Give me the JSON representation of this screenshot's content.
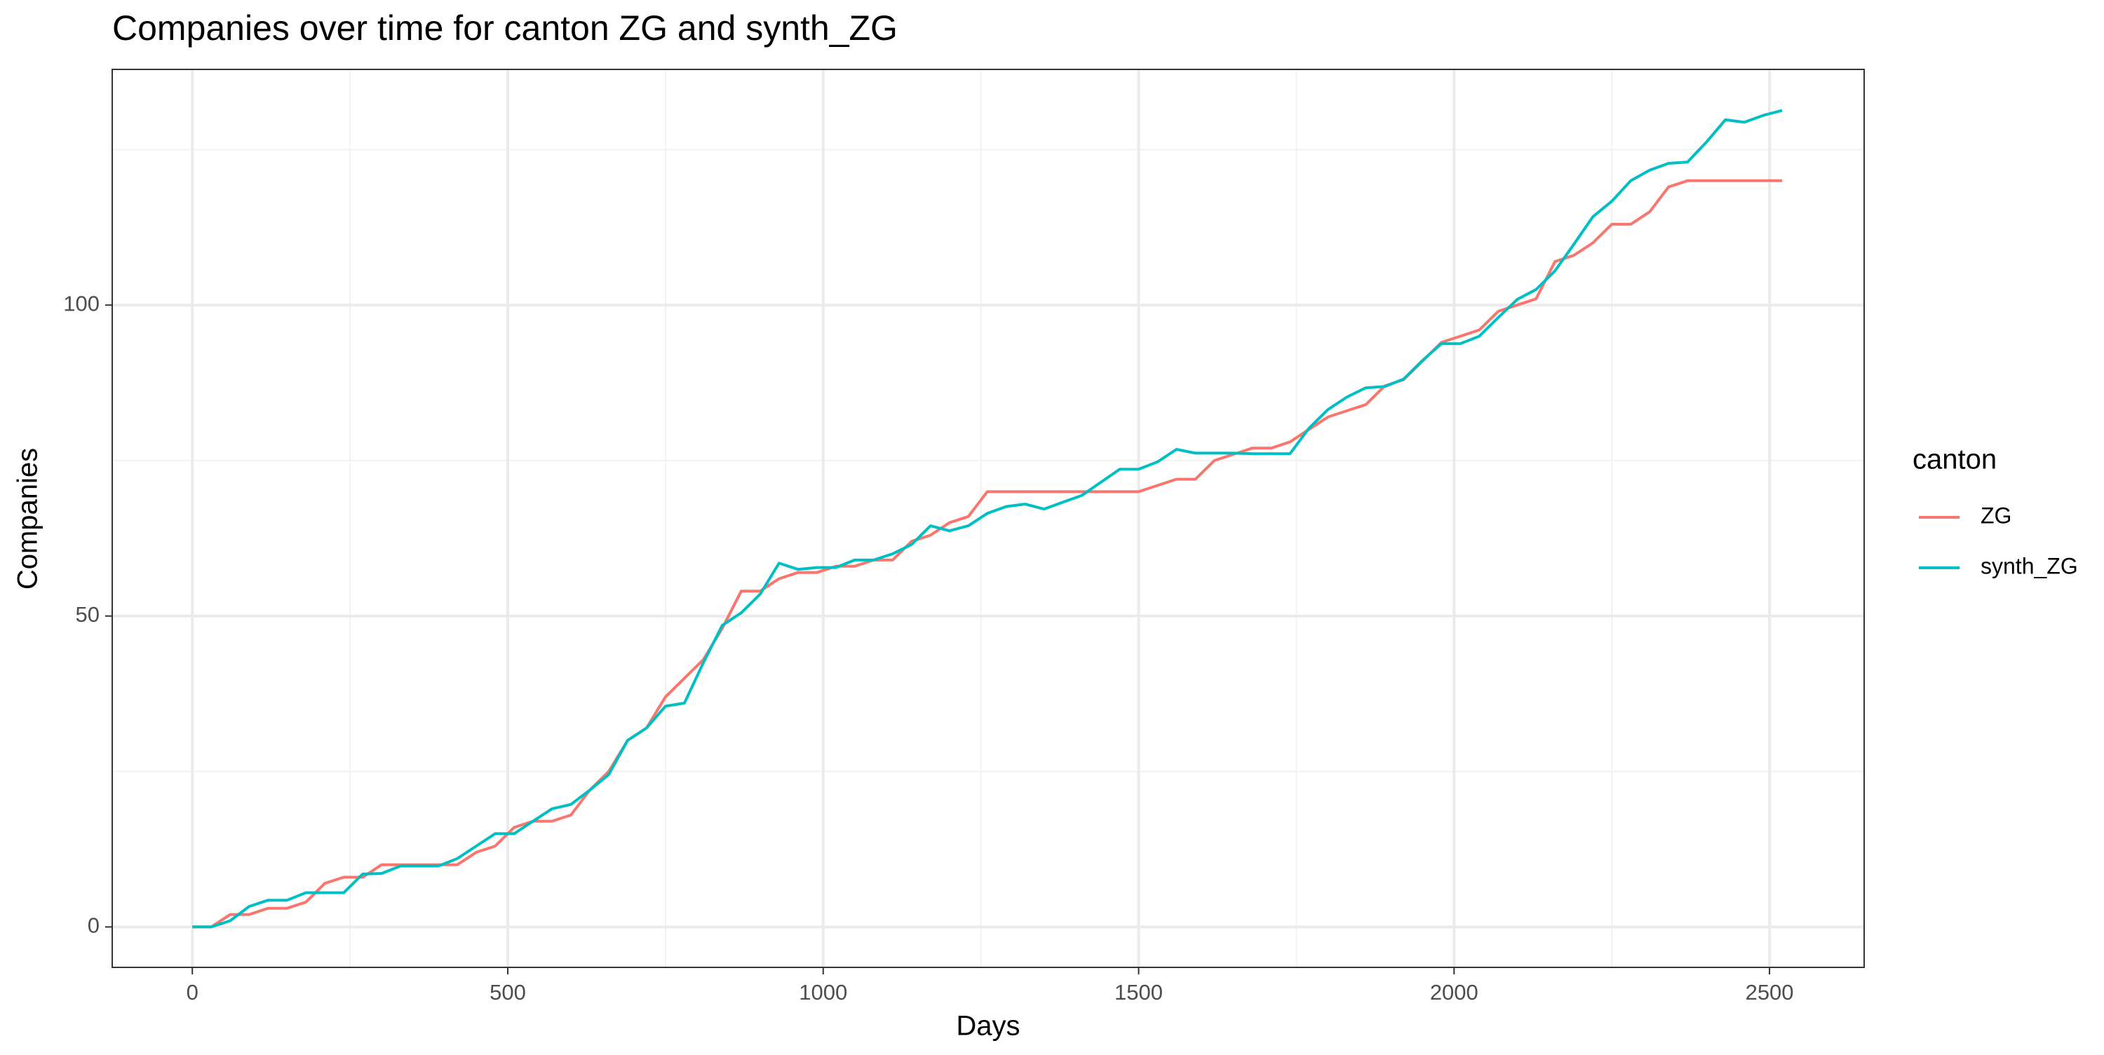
{
  "chart_data": {
    "type": "line",
    "title": "Companies over time for canton ZG and synth_ZG",
    "x_label": "Days",
    "y_label": "Companies",
    "legend_title": "canton",
    "legend_position": "right",
    "grid": true,
    "xlim": [
      -127,
      2650
    ],
    "ylim": [
      -6.5,
      137.9
    ],
    "xticks": [
      0,
      500,
      1000,
      1500,
      2000,
      2500
    ],
    "yticks": [
      0,
      50,
      100
    ],
    "x": [
      0,
      30,
      60,
      90,
      120,
      150,
      180,
      210,
      240,
      270,
      300,
      330,
      360,
      390,
      420,
      450,
      480,
      510,
      540,
      570,
      600,
      630,
      660,
      690,
      720,
      750,
      780,
      810,
      840,
      870,
      900,
      930,
      960,
      990,
      1020,
      1050,
      1080,
      1110,
      1140,
      1170,
      1200,
      1230,
      1260,
      1290,
      1320,
      1350,
      1380,
      1410,
      1440,
      1470,
      1500,
      1530,
      1560,
      1590,
      1620,
      1650,
      1680,
      1710,
      1740,
      1770,
      1800,
      1830,
      1860,
      1890,
      1920,
      1950,
      1980,
      2010,
      2040,
      2070,
      2100,
      2130,
      2160,
      2190,
      2220,
      2250,
      2280,
      2310,
      2340,
      2370,
      2400,
      2430,
      2460,
      2490,
      2520
    ],
    "series": [
      {
        "name": "ZG",
        "color": "#F8766D",
        "values": [
          0,
          0,
          2,
          2,
          3,
          3,
          4,
          7,
          8,
          8,
          10,
          10,
          10,
          10,
          10,
          12,
          13,
          16,
          17,
          17,
          18,
          22,
          25,
          30,
          32,
          37,
          40,
          43,
          48,
          54,
          54,
          56,
          57,
          57,
          58,
          58,
          59,
          59,
          62,
          63,
          65,
          66,
          70,
          70,
          70,
          70,
          70,
          70,
          70,
          70,
          70,
          71,
          72,
          72,
          75,
          76,
          77,
          77,
          78,
          80,
          82,
          83,
          84,
          87,
          88,
          91,
          94,
          95,
          96,
          99,
          100,
          101,
          107,
          108,
          110,
          113,
          113,
          115,
          119,
          120,
          120,
          120,
          120,
          120,
          120
        ]
      },
      {
        "name": "synth_ZG",
        "color": "#00BFC4",
        "values": [
          0,
          0,
          1,
          3.3,
          4.3,
          4.3,
          5.5,
          5.5,
          5.5,
          8.5,
          8.6,
          9.8,
          9.8,
          9.8,
          11,
          13,
          15,
          15,
          17,
          19,
          19.7,
          22,
          24.5,
          30,
          32,
          35.5,
          36,
          42.5,
          48.5,
          50.5,
          53.5,
          58.5,
          57.5,
          57.8,
          57.8,
          59,
          59,
          60,
          61.5,
          64.5,
          63.7,
          64.5,
          66.5,
          67.6,
          68,
          67.2,
          68.3,
          69.4,
          71.5,
          73.6,
          73.6,
          74.8,
          76.8,
          76.2,
          76.2,
          76.2,
          76.1,
          76.1,
          76.1,
          80.2,
          83.2,
          85.2,
          86.7,
          86.9,
          88.1,
          91.1,
          93.8,
          93.8,
          95,
          98,
          100.9,
          102.5,
          105.5,
          109.8,
          114.2,
          116.7,
          120,
          121.7,
          122.8,
          123,
          126.2,
          129.8,
          129.4,
          130.5,
          131.3
        ]
      }
    ]
  }
}
